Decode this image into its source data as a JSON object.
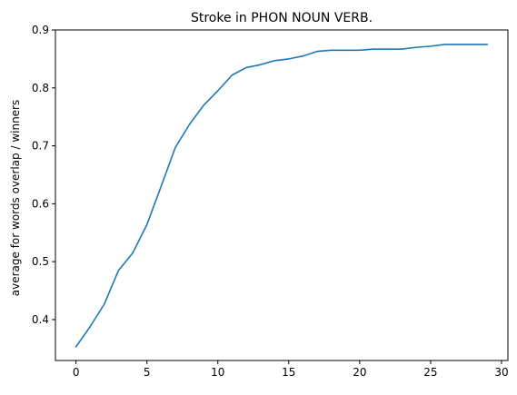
{
  "chart_data": {
    "type": "line",
    "title": "Stroke in PHON NOUN VERB.",
    "xlabel": "",
    "ylabel": "average for words overlap / winners",
    "xlim": [
      -1.45,
      30.45
    ],
    "ylim": [
      0.3294,
      0.9
    ],
    "x_ticks": [
      0,
      5,
      10,
      15,
      20,
      25,
      30
    ],
    "y_ticks": [
      0.4,
      0.5,
      0.6,
      0.7,
      0.8,
      0.9
    ],
    "grid": false,
    "series": [
      {
        "name": "",
        "color": "#1f77b4",
        "x": [
          0,
          1,
          2,
          3,
          4,
          5,
          6,
          7,
          8,
          9,
          10,
          11,
          12,
          13,
          14,
          15,
          16,
          17,
          18,
          19,
          20,
          21,
          22,
          23,
          24,
          25,
          26,
          27,
          28,
          29
        ],
        "y": [
          0.353,
          0.388,
          0.427,
          0.485,
          0.515,
          0.564,
          0.63,
          0.697,
          0.737,
          0.77,
          0.795,
          0.822,
          0.835,
          0.84,
          0.847,
          0.85,
          0.855,
          0.863,
          0.865,
          0.865,
          0.865,
          0.867,
          0.867,
          0.867,
          0.87,
          0.872,
          0.875,
          0.875,
          0.875,
          0.875
        ]
      }
    ]
  }
}
